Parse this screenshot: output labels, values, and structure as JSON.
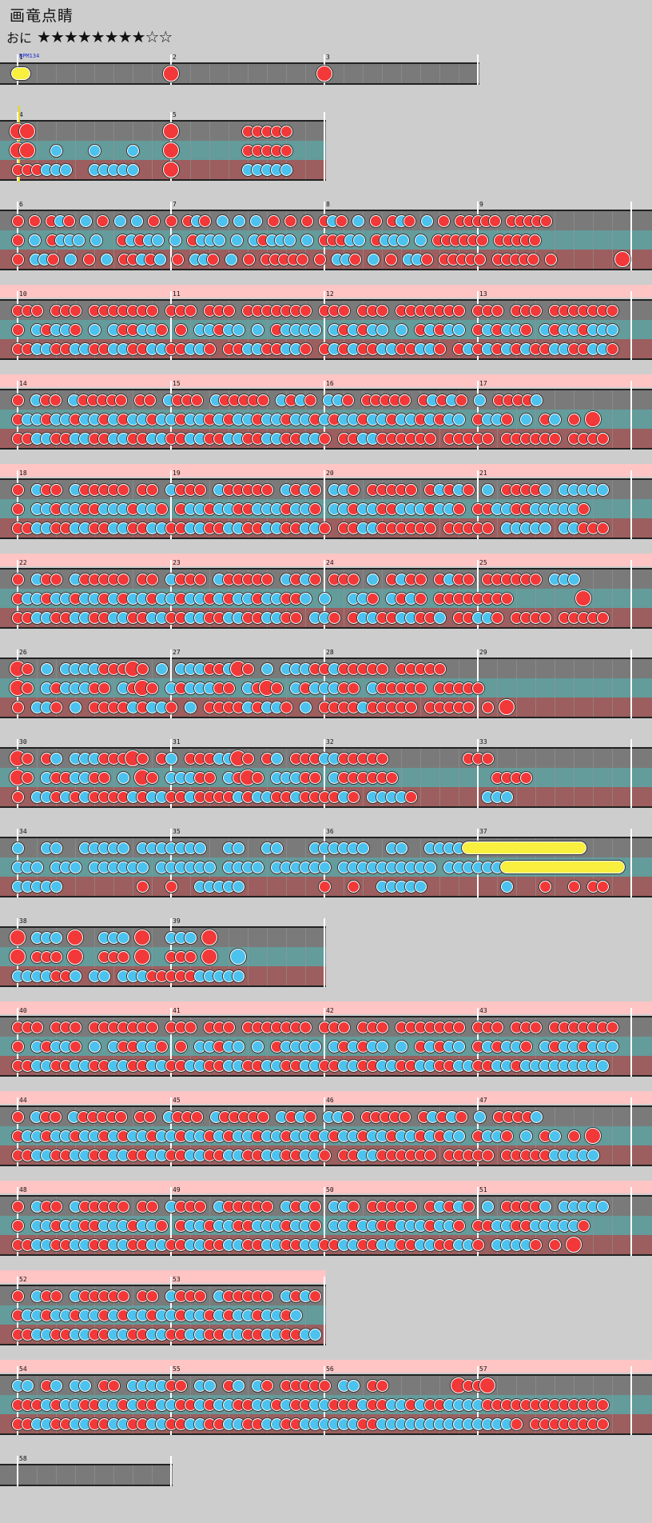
{
  "song": {
    "title": "画竜点睛",
    "difficulty_label": "おに",
    "stars": "★★★★★★★★☆☆"
  },
  "bpm_marker": "BPM134",
  "colors": {
    "background": "#cdcdcd",
    "lane_top": "#7a7a7a",
    "lane_mid": "#649b9b",
    "lane_bottom": "#9c5e5e",
    "don": "#f23838",
    "ka": "#4cc2ee",
    "drumroll": "#f8ef3e",
    "gogo_band": "#ffc4c4"
  },
  "legend": {
    "r": "don-note (red)",
    "b": "ka-note (blue)",
    "R": "big don",
    "B": "big ka",
    "Y": "drumroll"
  },
  "rows": [
    {
      "measures": [
        "1",
        "2",
        "3"
      ],
      "gogo": false,
      "bpm": true,
      "lanes": [
        "Y...............R...............R..............."
      ]
    },
    {
      "measures": [
        "4",
        "5"
      ],
      "gogo": false,
      "yellow": true,
      "lanes": [
        "RR..............R.......rrrrr...",
        "RR..b...b...b...R.......rrrrr...",
        "rrrbbb..bbbbb...R.......bbbbb..."
      ]
    },
    {
      "measures": [
        "6",
        "7",
        "8",
        "9"
      ],
      "gogo": false,
      "lanes": [
        "r.r.rbr.b.r.b.b.r.r.rbr.b.b.b.r.r.r.rbr.b.r.rbr.b.r.rrrrr.rrrrr.........",
        "r.b.rbbb.b..rbrbb.b.rbbb.b.brbbb.b.rrrbb.rbbb.b.rrrrrr.rrrrr..........",
        "r.bbr.b.r.b.rrbrb.r.bbr.b.r.rrrrr.r.bbr.b.r.bbr.rrrrr.rrrrr.r.......R"
      ]
    },
    {
      "measures": [
        "10",
        "11",
        "12",
        "13"
      ],
      "gogo": true,
      "lanes": [
        "rrr.rrr.rrrrrrr.rrr.rrr.rrrrrrr.rrr.rrr.rrrrrrr.rrr.rrr.rrrrrrr.",
        "r.brbbr.b.brrbbr.r.bbrbb.b.rbbbb.brbrbb.b.rbrbb.rbrbbr.brbbrbbb",
        "rrbbrrbbrrbbrrbbrrbbr.rrbbrrbbr.rbrbrrbbrrbbr.rbrbrbrbrrbbrrbbr"
      ]
    },
    {
      "measures": [
        "14",
        "15",
        "16",
        "17"
      ],
      "gogo": true,
      "lanes": [
        "r.brr.brrrrr.rr.brrr.brrrrr.brbr.bbr.rrrrr.rbrbr.b.rrrrb.........",
        "rbbrbbrbbrbrbbrbbrbbrbrbbrbbrbbrbrbbrbbrbbrbrbb.rbbr.b.rb.r.R",
        "rrbbrrbbrrbbrrbbrrbbrrbbrrbbrrbbr.rrbbrrrrrr.rrrrr.rrrrrr.rrrr"
      ]
    },
    {
      "measures": [
        "18",
        "19",
        "20",
        "21"
      ],
      "gogo": true,
      "lanes": [
        "r.brr.brrrrr.rr.brrr.brrrrr.brbr.bbr.rrrrr.rbrbr.b.rrrrb.bbbbb",
        "r.bbrbbrrbbbrbbr.rbbrbbrrbbbrbbr.bbrbbrrbbbrbbr.rrbbrrbbbbbr",
        "rrbbrrbbrrbbrrbbrrbbrrbbrrbbrrbbr.rrbbrrrrrr.rrrrr.bbbbb.bbrrr"
      ]
    },
    {
      "measures": [
        "22",
        "23",
        "24",
        "25"
      ],
      "gogo": true,
      "lanes": [
        "r.brr.brrrrr.rr.brrr.brrrrr.brbr.rrr.b.rbrr.rbrr.rrrrrr.bbb....",
        "rbbrbbrbbrbrbbrbbrbbrbrbbrbbrrb.b..bbr.brbr.rrrrrrrr.......R",
        "rrbbrrbbrrbbrrbbrrbbrrbbrrbbrr.bbr.rbbrrbbrrb.rrbbr.rrrr.rrrrr"
      ]
    },
    {
      "measures": [
        "26",
        "27",
        "28",
        "29"
      ],
      "gogo": false,
      "lanes": [
        "Rr.b.bbbbrrrRr.b.bbbrrbRr.b.bbbrrbrrrrr.rrrrr....",
        "Rr.brbbbrr.brRr.brbbbrr.brRr.brbbbrr.brrrrr.rrrrr....",
        "r.bbr.b.rrrrbrbbr.b.rrrrbrbbr.b.rrrrbrrrrr.rrrrr.r.R"
      ]
    },
    {
      "measures": [
        "30",
        "31",
        "32",
        "33"
      ],
      "gogo": false,
      "lanes": [
        "Rr.rb.bbbrrrRr.rb.rrrbbRr.rb.rrrbbrrrrr........rrr...",
        "Rr.brrbbrr.b.Rr.bbbrr.brRr.bbbrr.brrrrrr..........rrrr",
        "r.bbrbrbrrrrbrbbrrbrrrrbrbbrrbrrrrbr.bbbbr.......bbb."
      ]
    },
    {
      "measures": [
        "34",
        "35",
        "36",
        "37"
      ],
      "gogo": false,
      "lanes": [
        "b..bb..bbbbb.bbbbbbb..bb..bb...bbbbbb..bb..bbbbYYYYYYYYYYYY",
        "bbb.bbb.bbbbbb.bbbbbb.bbbb.bbbbbb.bbbbbbbbbb.bbbbbbYYYYYYYYYYYY",
        "bbbbb........r..r..bbbbb........r..r..bbbbb........b...r..r.rr"
      ]
    },
    {
      "measures": [
        "38",
        "39"
      ],
      "gogo": false,
      "lanes": [
        "R.bbb.R..bbb.R..bbb.R....",
        "R.rrr.R..rrr.R..rrr.R..B.",
        "bbbbrrb.bb.bbbrrrrrbbbbb"
      ]
    },
    {
      "measures": [
        "40",
        "41",
        "42",
        "43"
      ],
      "gogo": true,
      "lanes": [
        "rrr.rrr.rrrrrrr.rrr.rrr.rrrrrrr.rrr.rrr.rrrrrrr.rrr.rrr.rrrrrrr.",
        "r.brbbr.b.brrbbr.r.bbrbb.b.rbbbb.brbrbb.b.rbrbb.rbrbbr.brbbrbbb",
        "rrbbrrbbrrbbrrbbrrbbrrbbrrbbrrbbrrbbrrbbrrbbrrbbrrbbrbbbbbbbbb"
      ]
    },
    {
      "measures": [
        "44",
        "45",
        "46",
        "47"
      ],
      "gogo": true,
      "lanes": [
        "r.brr.brrrrr.rr.brrr.brrrrr.brbr.bbr.rrrrr.rbrbr.b.rrrrb.........",
        "rbbrbbrbbrbrbbrbbrbbrbrbbrbbrbbrbrbbrbbrbbrbrbb.rbbr.b.rb.r.R",
        "rrbbrrbbrrbbrrbbrrbbrrbbrrbbrrbbr.rrbbrrrrrr.rrrrr.rrrrrbbbbb"
      ]
    },
    {
      "measures": [
        "48",
        "49",
        "50",
        "51"
      ],
      "gogo": true,
      "lanes": [
        "r.brr.brrrrr.rr.brrr.brrrrr.brbr.bbr.rrrrr.rbrbr.b.rrrrb.bbbbb",
        "r.bbrbbrrbbbrbbr.rbbrbbrrbbbrbbr.bbrbbrrbbbrbbr.rrbbrrbbbbbr",
        "rrbbrrbbrrbbrrbbrrbbrrbbrrbbrrbbrrbbrrbbrrbbrrbbr.bbbbr.r.R"
      ]
    },
    {
      "measures": [
        "52",
        "53"
      ],
      "gogo": true,
      "lanes": [
        "r.brr.brrrrr.rr.brrr.brrrrr.brbr",
        "rbbrbbrbbrbrbbrbbrbbrbrbbrbbrb",
        "rrbbrrbbrrbbrrbbrrbbrrbbrrbbrrbb"
      ]
    },
    {
      "measures": [
        "54",
        "55",
        "56",
        "57"
      ],
      "gogo": true,
      "lanes": [
        "bb.rb.bb.rr.bbbbrr.bb.rb.br.rrrrr.bb.rr.......RrrR..........",
        "rrrbrbbrrbbrbrrbbrrbrbbrrbbrbrrbbrrrbrrbbrbrrbbbbrrrrrrrrrrrrr",
        "rrbbrrbbrrbbrrbbrrbbrrbbrrbbrrbbbbbbrrbbbbbbbbbbbbbbr.rrrrrrrr"
      ]
    },
    {
      "measures": [
        "58"
      ],
      "gogo": false,
      "lanes": [
        "................"
      ]
    }
  ]
}
